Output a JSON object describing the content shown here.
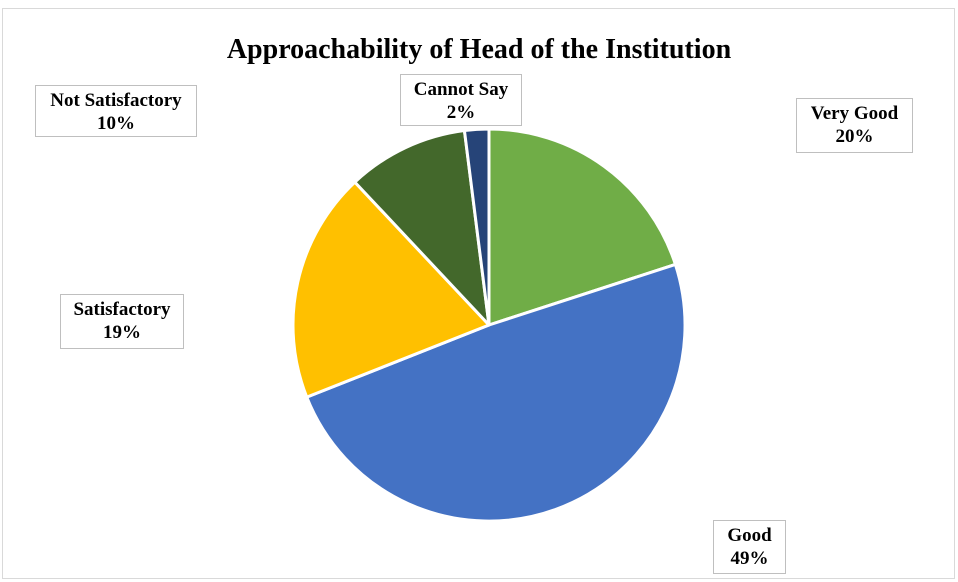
{
  "chart_data": {
    "type": "pie",
    "title": "Approachability of Head of the Institution",
    "slices": [
      {
        "label": "Very Good",
        "value": 20,
        "value_label": "20%",
        "color": "#70ad47"
      },
      {
        "label": "Good",
        "value": 49,
        "value_label": "49%",
        "color": "#4472c4"
      },
      {
        "label": "Satisfactory",
        "value": 19,
        "value_label": "19%",
        "color": "#ffc000"
      },
      {
        "label": "Not Satisfactory",
        "value": 10,
        "value_label": "10%",
        "color": "#43682b"
      },
      {
        "label": "Cannot Say",
        "value": 2,
        "value_label": "2%",
        "color": "#264478"
      }
    ],
    "legend": "none",
    "data_labels": "outside callouts"
  }
}
